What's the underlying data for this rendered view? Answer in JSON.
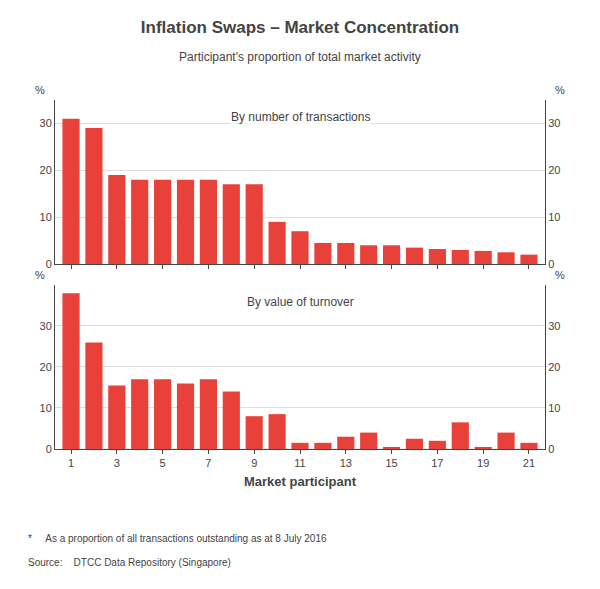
{
  "chart_data": [
    {
      "type": "bar",
      "title": "Inflation Swaps – Market Concentration",
      "subtitle": "Participant's proportion of total market activity",
      "annotations": [
        "By number of transactions"
      ],
      "x": [
        1,
        2,
        3,
        4,
        5,
        6,
        7,
        8,
        9,
        10,
        11,
        12,
        13,
        14,
        15,
        16,
        17,
        18,
        19,
        20,
        21
      ],
      "values": [
        31.0,
        29.0,
        19.0,
        18.0,
        18.0,
        18.0,
        18.0,
        17.0,
        17.0,
        9.0,
        7.0,
        4.5,
        4.5,
        4.0,
        4.0,
        3.5,
        3.2,
        3.0,
        2.8,
        2.5,
        2.0
      ],
      "color": "#e8413a",
      "xlim": [
        0.3,
        21.7
      ],
      "xticks": [
        1,
        3,
        5,
        7,
        9,
        11,
        13,
        15,
        17,
        19,
        21
      ],
      "ylim": [
        0,
        35
      ],
      "yticks": [
        0,
        10,
        20,
        30
      ],
      "y2lim": [
        0,
        35
      ],
      "y2ticks": [
        0,
        10,
        20,
        30
      ],
      "ylabel": "%",
      "y2label": "%",
      "grid": true,
      "tick_labels": "y"
    },
    {
      "type": "bar",
      "annotations": [
        "By value of turnover"
      ],
      "xlabel": "Market participant",
      "footnote": "*     As a proportion of all transactions outstanding as at 8 July 2016",
      "source": "Source:    DTCC Data Repository (Singapore)",
      "x": [
        1,
        2,
        3,
        4,
        5,
        6,
        7,
        8,
        9,
        10,
        11,
        12,
        13,
        14,
        15,
        16,
        17,
        18,
        19,
        20,
        21
      ],
      "values": [
        38.0,
        26.0,
        15.5,
        17.0,
        17.0,
        16.0,
        17.0,
        14.0,
        8.0,
        8.5,
        1.5,
        1.5,
        3.0,
        4.0,
        0.5,
        2.5,
        2.0,
        6.5,
        0.5,
        4.0,
        1.5
      ],
      "color": "#e8413a",
      "xlim": [
        0.3,
        21.7
      ],
      "xticks": [
        1,
        3,
        5,
        7,
        9,
        11,
        13,
        15,
        17,
        19,
        21
      ],
      "ylim": [
        0,
        40
      ],
      "yticks": [
        0,
        10,
        20,
        30
      ],
      "y2lim": [
        0,
        40
      ],
      "y2ticks": [
        0,
        10,
        20,
        30
      ],
      "ylabel": "%",
      "y2label": "%",
      "grid": true
    }
  ]
}
